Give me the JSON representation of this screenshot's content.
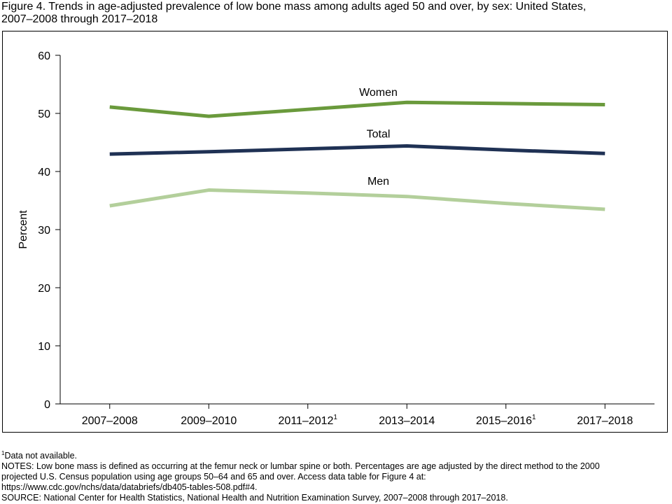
{
  "chart_data": {
    "type": "line",
    "title": [
      "Figure 4. Trends in age-adjusted prevalence of low bone mass among adults aged 50 and over, by sex: United States,",
      "2007–2008 through 2017–2018"
    ],
    "ylabel": "Percent",
    "categories": [
      "2007–2008",
      "2009–2010",
      "2011–2012",
      "2013–2014",
      "2015–2016",
      "2017–2018"
    ],
    "category_superscripts": [
      null,
      null,
      "1",
      null,
      "1",
      null
    ],
    "series": [
      {
        "name": "Women",
        "color": "#6a9a3c",
        "values": [
          51.1,
          49.5,
          50.7,
          51.9,
          51.7,
          51.5
        ]
      },
      {
        "name": "Total",
        "color": "#1f3154",
        "values": [
          43.0,
          43.4,
          43.9,
          44.4,
          43.7,
          43.1
        ]
      },
      {
        "name": "Men",
        "color": "#b3cf9b",
        "values": [
          34.1,
          36.8,
          36.3,
          35.7,
          34.5,
          33.5
        ]
      }
    ],
    "ylim": [
      0,
      60
    ],
    "yticks": [
      0,
      10,
      20,
      30,
      40,
      50,
      60
    ],
    "grid": false,
    "footnote": {
      "mark": "1",
      "text": "Data not available."
    },
    "notes": [
      "NOTES: Low bone mass is defined as occurring at the femur neck or lumbar spine or both. Percentages are age adjusted by the direct method to the 2000",
      "projected U.S. Census population using age groups 50–64 and 65 and over. Access data table for Figure 4 at:",
      "https://www.cdc.gov/nchs/data/databriefs/db405-tables-508.pdf#4.",
      "SOURCE: National Center for Health Statistics, National Health and Nutrition Examination Survey, 2007–2008 through 2017–2018."
    ]
  }
}
